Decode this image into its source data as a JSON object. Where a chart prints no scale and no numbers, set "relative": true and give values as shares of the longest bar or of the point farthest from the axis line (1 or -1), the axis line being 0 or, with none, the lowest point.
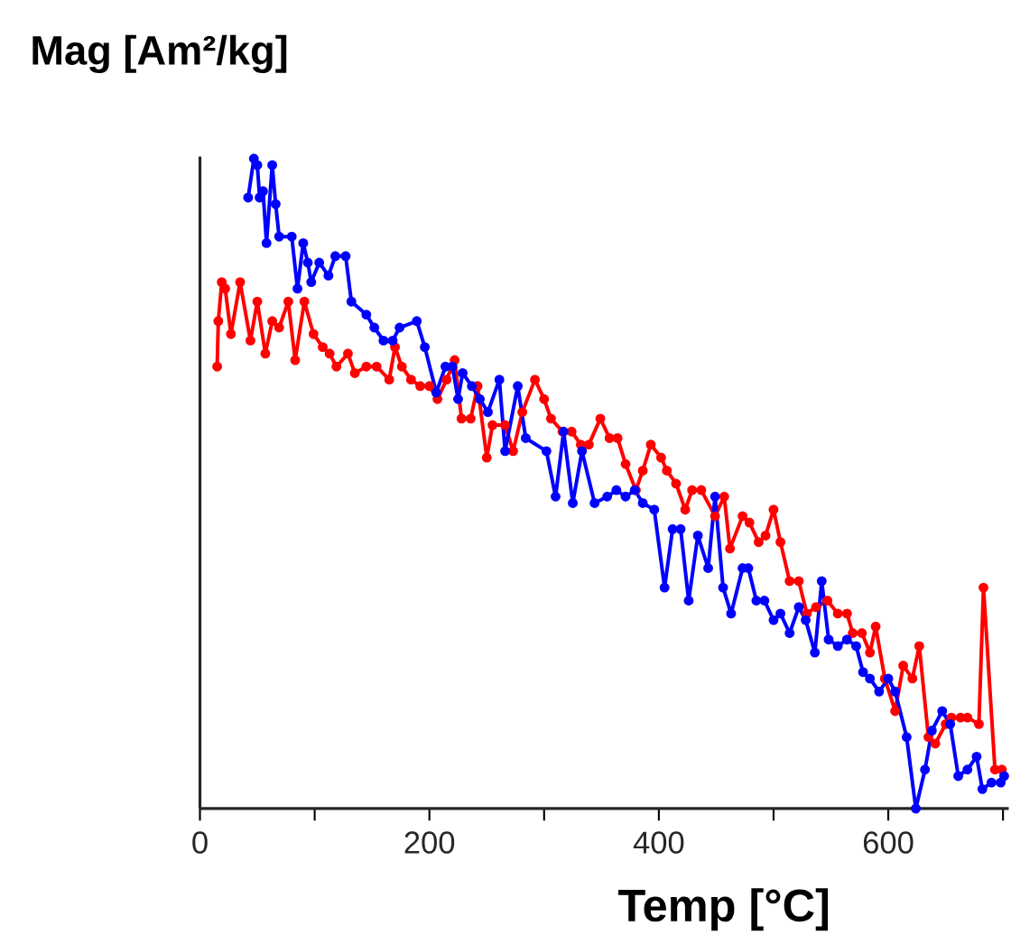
{
  "chart_data": {
    "type": "line",
    "ylabel": "Mag [Am²/kg]",
    "xlabel": "Temp [°C]",
    "relative": true,
    "marker": "circle",
    "line_style": "solid",
    "tick_labels": "x",
    "xlim": [
      0,
      705
    ],
    "xticks": [
      0,
      {
        "value": 100,
        "label": null
      },
      200,
      {
        "value": 300,
        "label": null
      },
      400,
      {
        "value": 500,
        "label": null
      },
      600,
      {
        "value": 700,
        "label": null
      }
    ],
    "series": [
      {
        "color": "#ff0000",
        "x": [
          15,
          16,
          19,
          22,
          27,
          35,
          44,
          50,
          57,
          63,
          69,
          77,
          83,
          91,
          99,
          107,
          113,
          119,
          129,
          135,
          145,
          154,
          165,
          170,
          176,
          184,
          192,
          200,
          207,
          215,
          222,
          228,
          236,
          242,
          250,
          255,
          266,
          273,
          281,
          292,
          300,
          306,
          316,
          324,
          332,
          339,
          349,
          357,
          364,
          371,
          380,
          386,
          393,
          402,
          407,
          415,
          423,
          429,
          437,
          449,
          457,
          462,
          473,
          479,
          487,
          493,
          500,
          506,
          514,
          522,
          529,
          537,
          547,
          556,
          564,
          569,
          577,
          584,
          589,
          597,
          606,
          613,
          621,
          627,
          635,
          641,
          650,
          655,
          663,
          669,
          679,
          683,
          693,
          699
        ],
        "values": [
          0.68,
          0.75,
          0.81,
          0.8,
          0.73,
          0.81,
          0.72,
          0.78,
          0.7,
          0.75,
          0.74,
          0.78,
          0.69,
          0.78,
          0.73,
          0.71,
          0.7,
          0.68,
          0.7,
          0.67,
          0.68,
          0.68,
          0.66,
          0.71,
          0.68,
          0.66,
          0.65,
          0.65,
          0.63,
          0.66,
          0.69,
          0.6,
          0.6,
          0.65,
          0.54,
          0.59,
          0.59,
          0.55,
          0.61,
          0.66,
          0.63,
          0.6,
          0.58,
          0.58,
          0.56,
          0.56,
          0.6,
          0.57,
          0.57,
          0.53,
          0.49,
          0.52,
          0.56,
          0.54,
          0.52,
          0.5,
          0.46,
          0.49,
          0.49,
          0.45,
          0.48,
          0.4,
          0.45,
          0.44,
          0.41,
          0.42,
          0.46,
          0.41,
          0.35,
          0.35,
          0.3,
          0.31,
          0.32,
          0.3,
          0.3,
          0.27,
          0.27,
          0.24,
          0.28,
          0.2,
          0.15,
          0.22,
          0.2,
          0.25,
          0.11,
          0.1,
          0.13,
          0.14,
          0.14,
          0.14,
          0.13,
          0.34,
          0.06,
          0.06
        ]
      },
      {
        "color": "#0000ff",
        "x": [
          42,
          47,
          50,
          52,
          55,
          58,
          63,
          66,
          69,
          80,
          85,
          90,
          94,
          97,
          104,
          112,
          118,
          127,
          132,
          145,
          152,
          160,
          168,
          174,
          189,
          196,
          206,
          214,
          220,
          225,
          229,
          237,
          244,
          251,
          261,
          266,
          277,
          284,
          302,
          310,
          317,
          325,
          333,
          344,
          355,
          363,
          371,
          379,
          386,
          396,
          405,
          412,
          419,
          426,
          434,
          443,
          449,
          456,
          463,
          473,
          478,
          485,
          492,
          500,
          506,
          514,
          522,
          528,
          536,
          542,
          548,
          556,
          564,
          572,
          578,
          584,
          592,
          600,
          606,
          616,
          624,
          632,
          638,
          647,
          654,
          661,
          669,
          677,
          682,
          690,
          698,
          701
        ],
        "values": [
          0.94,
          1.0,
          0.99,
          0.94,
          0.95,
          0.87,
          0.99,
          0.93,
          0.88,
          0.88,
          0.8,
          0.87,
          0.84,
          0.81,
          0.84,
          0.82,
          0.85,
          0.85,
          0.78,
          0.76,
          0.74,
          0.72,
          0.72,
          0.74,
          0.75,
          0.71,
          0.64,
          0.68,
          0.68,
          0.63,
          0.67,
          0.65,
          0.63,
          0.61,
          0.66,
          0.55,
          0.65,
          0.57,
          0.55,
          0.48,
          0.58,
          0.47,
          0.55,
          0.47,
          0.48,
          0.49,
          0.48,
          0.49,
          0.47,
          0.46,
          0.34,
          0.43,
          0.43,
          0.32,
          0.42,
          0.37,
          0.48,
          0.34,
          0.3,
          0.37,
          0.37,
          0.32,
          0.32,
          0.29,
          0.3,
          0.27,
          0.31,
          0.29,
          0.24,
          0.35,
          0.26,
          0.25,
          0.26,
          0.25,
          0.21,
          0.2,
          0.18,
          0.2,
          0.18,
          0.11,
          0.0,
          0.06,
          0.12,
          0.15,
          0.13,
          0.05,
          0.06,
          0.08,
          0.03,
          0.04,
          0.04,
          0.05
        ]
      }
    ]
  }
}
